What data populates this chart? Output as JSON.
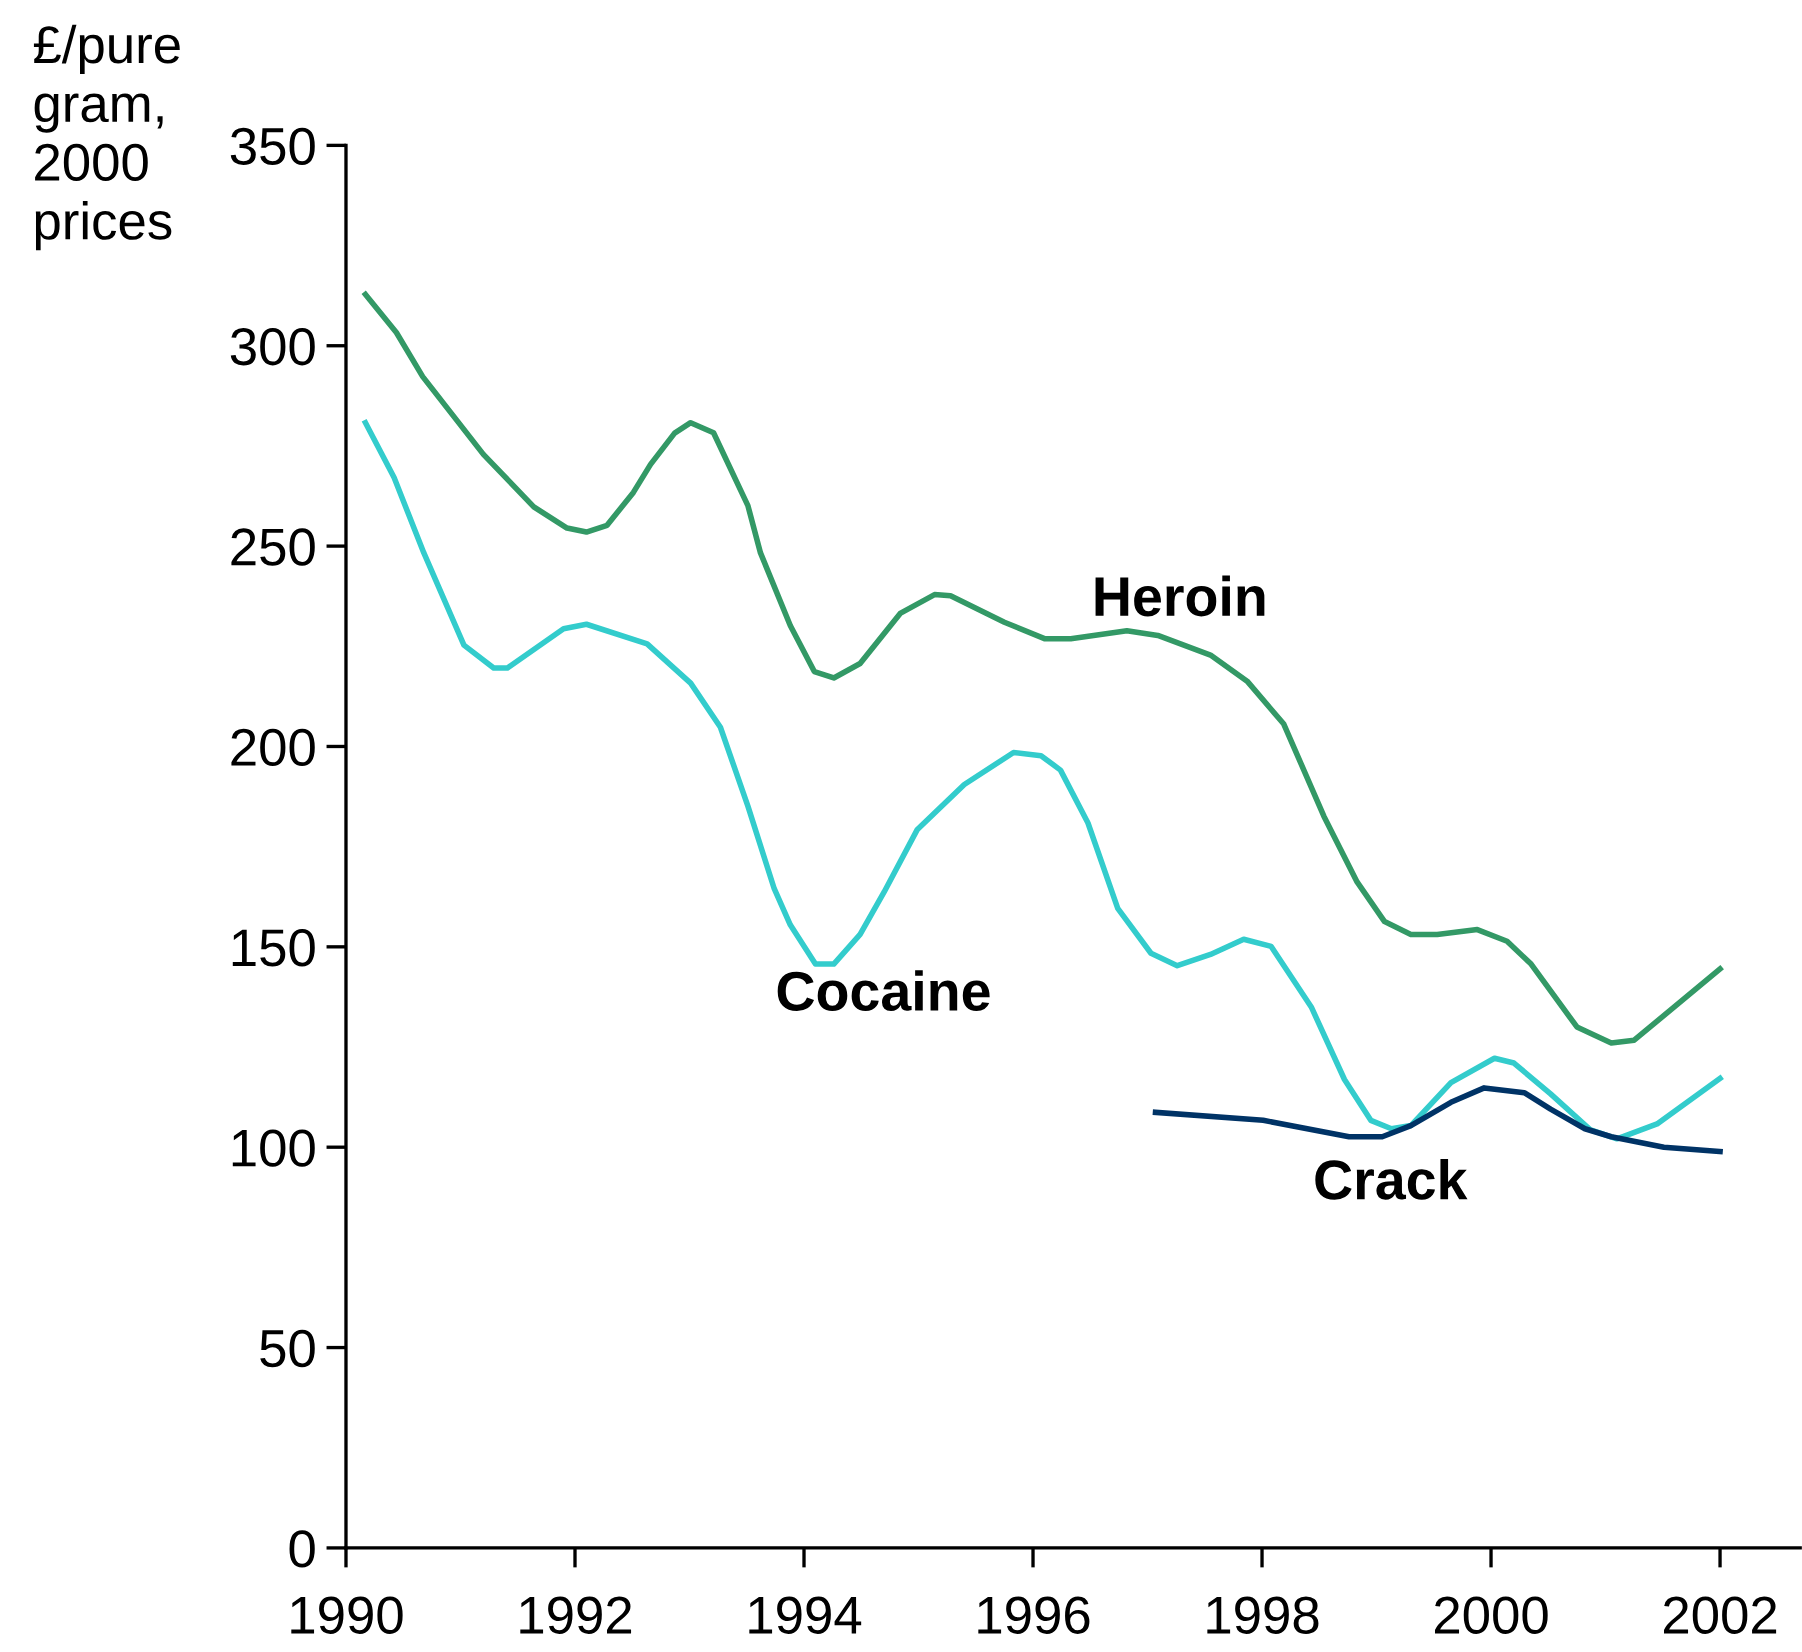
{
  "chart_data": {
    "type": "line",
    "ylabel": "£/pure\ngram,\n2000\nprices",
    "xlim": [
      1990,
      2002.7
    ],
    "xticks": [
      1990,
      1992,
      1994,
      1996,
      1998,
      2000,
      2002
    ],
    "ylim": [
      0,
      350
    ],
    "yticks": [
      0,
      50,
      100,
      150,
      200,
      250,
      300,
      350
    ],
    "grid": false,
    "marker": "none",
    "line_style": "solid",
    "series": [
      {
        "name": "Heroin",
        "color": "#339966",
        "x": [
          1990.17,
          1990.44,
          1990.67,
          1991.2,
          1991.64,
          1991.93,
          1992.1,
          1992.28,
          1992.51,
          1992.66,
          1992.87,
          1993.01,
          1993.21,
          1993.51,
          1993.62,
          1993.88,
          1994.09,
          1994.26,
          1994.49,
          1994.84,
          1995.14,
          1995.28,
          1995.75,
          1996.1,
          1996.33,
          1996.82,
          1997.09,
          1997.55,
          1997.87,
          1998.19,
          1998.54,
          1998.83,
          1999.07,
          1999.3,
          1999.53,
          1999.88,
          2000.14,
          2000.35,
          2000.75,
          2001.05,
          2001.25,
          2002.0
        ],
        "values": [
          312.8,
          303.3,
          292.3,
          272.9,
          259.8,
          254.5,
          253.5,
          255.2,
          263.4,
          270.4,
          278.2,
          280.8,
          278.3,
          260.1,
          248.3,
          230.2,
          218.7,
          217.1,
          220.7,
          233.2,
          237.9,
          237.6,
          231,
          226.9,
          226.9,
          228.9,
          227.7,
          222.8,
          216.3,
          205.6,
          182.6,
          166.2,
          156.3,
          153.1,
          153.1,
          154.3,
          151.4,
          145.7,
          130,
          126,
          126.7,
          144.5
        ]
      },
      {
        "name": "Cocaine",
        "color": "#33cccc",
        "x": [
          1990.17,
          1990.42,
          1990.68,
          1991.03,
          1991.29,
          1991.41,
          1991.9,
          1992.1,
          1992.63,
          1993.01,
          1993.27,
          1993.51,
          1993.74,
          1993.88,
          1994.1,
          1994.26,
          1994.49,
          1994.7,
          1994.99,
          1995.4,
          1995.83,
          1996.07,
          1996.24,
          1996.48,
          1996.74,
          1997.03,
          1997.26,
          1997.55,
          1997.84,
          1998.08,
          1998.43,
          1998.72,
          1998.95,
          1999.13,
          1999.3,
          1999.65,
          2000.03,
          2000.2,
          2000.52,
          2000.87,
          2001.1,
          2001.45,
          2002.0
        ],
        "values": [
          280.8,
          267.1,
          248.3,
          225.3,
          219.6,
          219.6,
          229.4,
          230.5,
          225.6,
          215.8,
          204.8,
          185.1,
          164.5,
          155.5,
          145.7,
          145.7,
          153.1,
          163.7,
          179.3,
          190.5,
          198.5,
          197.7,
          194.1,
          180.9,
          159.6,
          148.4,
          145.3,
          148.1,
          151.9,
          150.1,
          135,
          116.9,
          106.7,
          104.6,
          105.4,
          116.1,
          122.2,
          121,
          113.3,
          104.3,
          102.1,
          105.8,
          117.2
        ]
      },
      {
        "name": "Crack",
        "color": "#003366",
        "x": [
          1997.07,
          1998.01,
          1998.76,
          1999.05,
          1999.3,
          1999.65,
          1999.94,
          2000.29,
          2000.52,
          2000.82,
          2001.05,
          2001.51,
          2002.0
        ],
        "values": [
          108.7,
          106.7,
          102.6,
          102.6,
          105.4,
          111.2,
          114.8,
          113.6,
          109.5,
          104.6,
          102.6,
          100,
          98.9
        ]
      }
    ]
  }
}
